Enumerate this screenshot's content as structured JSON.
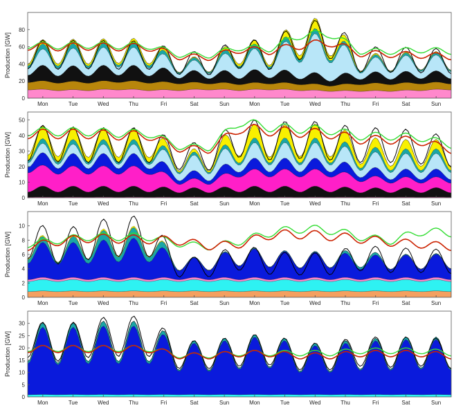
{
  "figure": {
    "ylabel": "Production [GW]"
  },
  "chart_data": [
    {
      "type": "area",
      "ylim": [
        0,
        100
      ],
      "yticks": [
        0,
        20,
        40,
        60,
        80
      ],
      "ylabel": "Production [GW]",
      "day_labels": [
        "Mon",
        "Tue",
        "Wed",
        "Thu",
        "Fri",
        "Sat",
        "Sun",
        "Mon",
        "Tue",
        "Wed",
        "Thu",
        "Fri",
        "Sat",
        "Sun"
      ],
      "layer_order": [
        "base",
        "brown",
        "pink",
        "black",
        "blue",
        "lightblue",
        "teal",
        "yellow",
        "green"
      ],
      "colors": {
        "base": "#ff88cc",
        "brown": "#b8860b",
        "pink": "#ff1fc8",
        "black": "#111111",
        "blue": "#0a1adc",
        "lightblue": "#b8e6f8",
        "teal": "#1aa6a6",
        "yellow": "#f8f000",
        "green": "#33dd33",
        "red": "#cc2200",
        "cyan": "#2ef2f2",
        "orange": "#f4a060"
      },
      "series": [
        {
          "name": "base",
          "values": [
            11,
            10,
            10,
            11,
            10,
            10,
            11,
            10,
            11,
            10,
            9,
            9,
            9,
            10,
            11
          ]
        },
        {
          "name": "brown",
          "values": [
            10,
            10,
            10,
            10,
            10,
            9,
            8,
            8,
            8,
            8,
            7,
            9,
            9,
            9,
            8
          ]
        },
        {
          "name": "pink",
          "values": [
            0,
            0,
            0,
            0,
            0,
            0,
            0,
            0,
            0,
            0,
            0,
            0,
            0,
            0,
            0
          ]
        },
        {
          "name": "black",
          "values": [
            18,
            18,
            18,
            18,
            18,
            14,
            13,
            15,
            15,
            14,
            12,
            13,
            13,
            13,
            13
          ]
        },
        {
          "name": "blue",
          "values": [
            0,
            0,
            0,
            0,
            0,
            0,
            0,
            0,
            0,
            0,
            0,
            0,
            0,
            0,
            0
          ]
        },
        {
          "name": "lightblue",
          "values": [
            18,
            20,
            21,
            21,
            21,
            11,
            13,
            26,
            23,
            43,
            48,
            16,
            18,
            19,
            18
          ]
        },
        {
          "name": "teal",
          "values": [
            6,
            6,
            5,
            5,
            6,
            3,
            3,
            6,
            5,
            6,
            6,
            3,
            3,
            3,
            3
          ]
        },
        {
          "name": "yellow",
          "values": [
            5,
            5,
            5,
            5,
            5,
            1,
            1,
            6,
            4,
            12,
            12,
            2,
            1,
            1,
            1
          ]
        },
        {
          "name": "green",
          "values": [
            0,
            0,
            0,
            0,
            0,
            0,
            0,
            0,
            0,
            0,
            0,
            0,
            0,
            0,
            0
          ]
        }
      ],
      "red_line": [
        65,
        64,
        65,
        64,
        64,
        52,
        51,
        61,
        59,
        66,
        70,
        56,
        55,
        54,
        52
      ],
      "green_line": [
        66,
        65,
        66,
        65,
        65,
        54,
        53,
        63,
        61,
        78,
        80,
        58,
        58,
        60,
        58
      ],
      "black_line": [
        68,
        67,
        68,
        67,
        67,
        55,
        54,
        70,
        66,
        90,
        92,
        60,
        60,
        59,
        57
      ]
    },
    {
      "type": "area",
      "ylim": [
        0,
        55
      ],
      "yticks": [
        0,
        10,
        20,
        30,
        40,
        50
      ],
      "ylabel": "Production [GW]",
      "day_labels": [
        "Mon",
        "Tue",
        "Wed",
        "Thu",
        "Fri",
        "Sat",
        "Sun",
        "Mon",
        "Tue",
        "Wed",
        "Thu",
        "Fri",
        "Sat",
        "Sun"
      ],
      "layer_order": [
        "base",
        "brown",
        "pink",
        "black",
        "blue",
        "lightblue",
        "teal",
        "yellow",
        "green"
      ],
      "colors": {
        "base": "#ff88cc",
        "brown": "#b8860b",
        "pink": "#ff1fc8",
        "black": "#111111",
        "blue": "#0a1adc",
        "lightblue": "#b8e6f8",
        "teal": "#1aa6a6",
        "yellow": "#f8f000",
        "green": "#33dd33",
        "red": "#cc2200",
        "cyan": "#2ef2f2",
        "orange": "#f4a060"
      },
      "series": [
        {
          "name": "base",
          "values": [
            0.5,
            0.5,
            0.5,
            0.5,
            0.5,
            0.5,
            0.5,
            0.5,
            0.5,
            0.5,
            0.5,
            0.5,
            0.5,
            0.5,
            0.5
          ]
        },
        {
          "name": "brown",
          "values": [
            0,
            0,
            0,
            0,
            0,
            0,
            0,
            0,
            0,
            0,
            0,
            0,
            0,
            0,
            0
          ]
        },
        {
          "name": "black",
          "values": [
            7,
            7,
            7,
            7,
            7,
            6,
            6,
            7,
            7,
            7,
            7,
            6,
            6,
            6,
            6
          ]
        },
        {
          "name": "pink",
          "values": [
            14,
            13,
            13,
            13,
            13,
            6,
            6,
            11,
            11,
            11,
            11,
            8,
            7,
            7,
            7
          ]
        },
        {
          "name": "blue",
          "values": [
            8,
            8,
            8,
            8,
            8,
            5,
            5,
            7,
            7,
            7,
            7,
            6,
            5,
            5,
            5
          ]
        },
        {
          "name": "lightblue",
          "values": [
            6,
            6,
            6,
            6,
            6,
            10,
            10,
            10,
            10,
            10,
            10,
            10,
            10,
            10,
            10
          ]
        },
        {
          "name": "teal",
          "values": [
            3,
            3,
            3,
            3,
            3,
            2,
            2,
            3,
            3,
            3,
            3,
            3,
            3,
            3,
            3
          ]
        },
        {
          "name": "yellow",
          "values": [
            8,
            8,
            7,
            7,
            7,
            2,
            2,
            10,
            8,
            9,
            9,
            6,
            6,
            6,
            6
          ]
        },
        {
          "name": "green",
          "values": [
            0,
            0,
            0,
            0,
            0,
            0,
            0,
            0,
            0,
            0,
            0,
            0,
            0,
            0,
            0
          ]
        }
      ],
      "red_line": [
        44,
        44,
        44,
        43,
        43,
        34,
        33,
        48,
        46,
        45,
        44,
        40,
        40,
        39,
        33
      ],
      "green_line": [
        45,
        45,
        45,
        44,
        44,
        35,
        34,
        52,
        48,
        47,
        46,
        42,
        42,
        41,
        36
      ],
      "black_line": [
        47,
        46,
        45,
        45,
        45,
        36,
        35,
        52,
        48,
        50,
        48,
        45,
        45,
        43,
        39
      ]
    },
    {
      "type": "area",
      "ylim": [
        0,
        12
      ],
      "yticks": [
        0,
        2,
        4,
        6,
        8,
        10
      ],
      "ylabel": "Production [GW]",
      "day_labels": [
        "Mon",
        "Tue",
        "Wed",
        "Thu",
        "Fri",
        "Sat",
        "Sun",
        "Mon",
        "Tue",
        "Wed",
        "Thu",
        "Fri",
        "Sat",
        "Sun"
      ],
      "layer_order": [
        "orange",
        "cyan",
        "pink",
        "blue",
        "teal",
        "yellow"
      ],
      "colors": {
        "base": "#ff88cc",
        "brown": "#b8860b",
        "pink": "#ff88cc",
        "black": "#111111",
        "blue": "#0a1adc",
        "lightblue": "#b8e6f8",
        "teal": "#1aa6a6",
        "yellow": "#f8f000",
        "green": "#33dd33",
        "red": "#cc2200",
        "cyan": "#2ef2f2",
        "orange": "#f4a060"
      },
      "series": [
        {
          "name": "orange",
          "values": [
            0.9,
            0.9,
            0.9,
            0.9,
            0.9,
            0.9,
            0.9,
            0.9,
            0.9,
            0.9,
            0.9,
            0.9,
            0.9,
            0.9,
            0.9
          ]
        },
        {
          "name": "cyan",
          "values": [
            1.6,
            1.6,
            1.6,
            1.6,
            1.6,
            1.6,
            1.6,
            1.6,
            1.6,
            1.6,
            1.6,
            1.6,
            1.6,
            1.6,
            1.6
          ]
        },
        {
          "name": "pink",
          "values": [
            0.3,
            0.3,
            0.3,
            0.3,
            0.3,
            0.3,
            0.3,
            0.3,
            0.3,
            0.3,
            0.3,
            0.3,
            0.3,
            0.3,
            0.3
          ]
        },
        {
          "name": "blue",
          "values": [
            5.0,
            4.8,
            5.0,
            5.5,
            5.5,
            2.7,
            2.8,
            4.2,
            3.8,
            3.5,
            3.6,
            3.2,
            3.1,
            3.2,
            3.3
          ]
        },
        {
          "name": "teal",
          "values": [
            1.2,
            0.5,
            1.2,
            1.5,
            1.5,
            0.1,
            0.1,
            0.1,
            0.1,
            0.1,
            0.1,
            0.6,
            0.1,
            0.1,
            0.1
          ]
        },
        {
          "name": "yellow",
          "values": [
            0.2,
            0.1,
            0.2,
            0.2,
            0.2,
            0,
            0,
            0,
            0,
            0,
            0,
            0,
            0,
            0,
            0
          ]
        }
      ],
      "red_line": [
        7.6,
        8.4,
        8.9,
        8.8,
        8.7,
        8.5,
        7.7,
        8.0,
        9.4,
        9.5,
        9.2,
        8.8,
        8.3,
        8.0,
        7.6
      ],
      "green_line": [
        7.9,
        8.5,
        9.0,
        9.0,
        9.0,
        8.0,
        7.5,
        8.3,
        9.6,
        10.2,
        10.0,
        9.0,
        8.4,
        9.8,
        9.6
      ],
      "black_line": [
        10.8,
        9.3,
        10.5,
        11.4,
        11.4,
        5.6,
        5.7,
        7.6,
        6.4,
        6.2,
        6.3,
        7.4,
        6.9,
        6.9,
        6.6
      ]
    },
    {
      "type": "area",
      "ylim": [
        0,
        35
      ],
      "yticks": [
        0,
        5,
        10,
        15,
        20,
        25,
        30
      ],
      "ylabel": "Production [GW]",
      "day_labels": [
        "Mon",
        "Tue",
        "Wed",
        "Thu",
        "Fri",
        "Sat",
        "Sun",
        "Mon",
        "Tue",
        "Wed",
        "Thu",
        "Fri",
        "Sat",
        "Sun"
      ],
      "layer_order": [
        "cyan",
        "blue",
        "teal",
        "yellow",
        "green"
      ],
      "colors": {
        "base": "#ff88cc",
        "brown": "#b8860b",
        "pink": "#ff1fc8",
        "black": "#111111",
        "blue": "#0a1adc",
        "lightblue": "#b8e6f8",
        "teal": "#1aa6a6",
        "yellow": "#f8f000",
        "green": "#33dd33",
        "red": "#cc2200",
        "cyan": "#2ef2f2",
        "orange": "#f4a060"
      },
      "series": [
        {
          "name": "cyan",
          "values": [
            1,
            1,
            1,
            1,
            1,
            1,
            1,
            1,
            1,
            1,
            1,
            1,
            1,
            1,
            1
          ]
        },
        {
          "name": "blue",
          "values": [
            28,
            27,
            28,
            28,
            28,
            21,
            21,
            23,
            24,
            20,
            20,
            22,
            22,
            23,
            22
          ]
        },
        {
          "name": "teal",
          "values": [
            2,
            1.5,
            2,
            2,
            2,
            1,
            1,
            1,
            1,
            1,
            1,
            1,
            1,
            1,
            1
          ]
        },
        {
          "name": "yellow",
          "values": [
            0,
            0,
            0,
            0,
            0,
            0,
            0,
            0,
            0,
            0,
            0,
            0,
            0,
            0,
            0
          ]
        },
        {
          "name": "green",
          "values": [
            0,
            0,
            0,
            0,
            0,
            0,
            0,
            0,
            0,
            0,
            0,
            0,
            0,
            0,
            0
          ]
        }
      ],
      "red_line": [
        21,
        21,
        21,
        21,
        21,
        18,
        18,
        19,
        19,
        18,
        18,
        19,
        19,
        19,
        18
      ],
      "green_line": [
        21,
        21,
        21,
        21,
        21,
        18,
        18,
        19,
        19,
        19,
        19,
        20,
        20,
        20,
        19
      ],
      "black_line": [
        32,
        29,
        32,
        33,
        33,
        23,
        23,
        25,
        26,
        22,
        22,
        25,
        24,
        25,
        23
      ]
    }
  ]
}
